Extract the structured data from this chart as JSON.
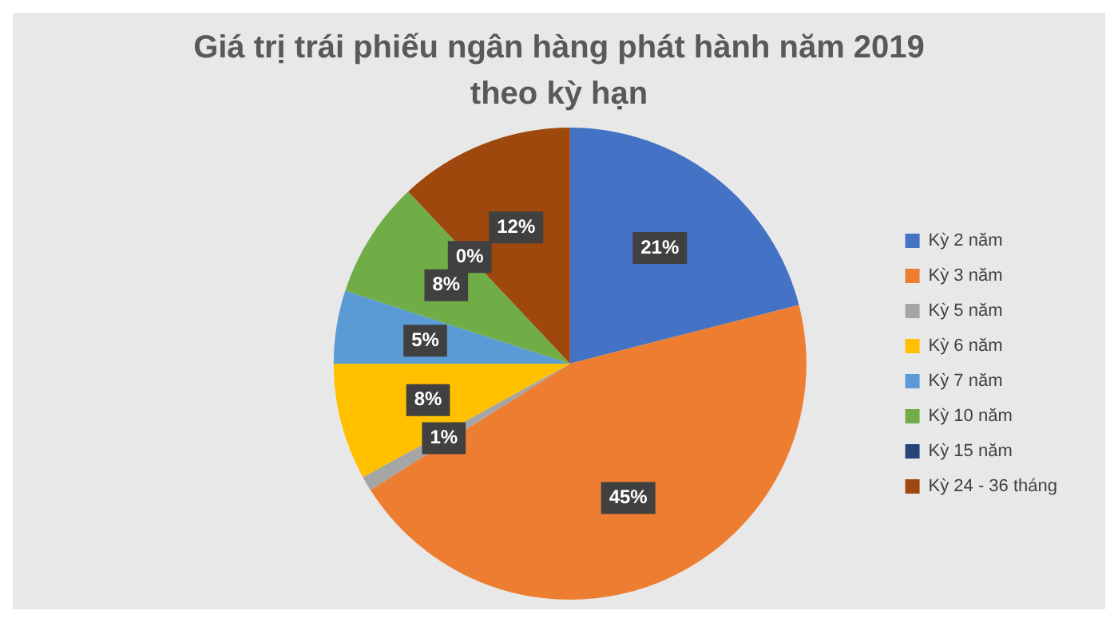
{
  "chart_data": {
    "type": "pie",
    "title": "Giá trị trái phiếu ngân hàng phát hành năm 2019 theo kỳ hạn",
    "categories": [
      "Kỳ 2 năm",
      "Kỳ 3 năm",
      "Kỳ 5 năm",
      "Kỳ 6 năm",
      "Kỳ 7 năm",
      "Kỳ 10 năm",
      "Kỳ 15 năm",
      "Kỳ 24 - 36 tháng"
    ],
    "values": [
      21,
      45,
      1,
      8,
      5,
      8,
      0,
      12
    ],
    "colors": [
      "#4472c4",
      "#ed7d31",
      "#a5a5a5",
      "#ffc000",
      "#5b9bd5",
      "#70ad47",
      "#264478",
      "#9e480e"
    ],
    "value_labels": [
      "21%",
      "45%",
      "1%",
      "8%",
      "5%",
      "8%",
      "0%",
      "12%"
    ],
    "legend": "right"
  }
}
